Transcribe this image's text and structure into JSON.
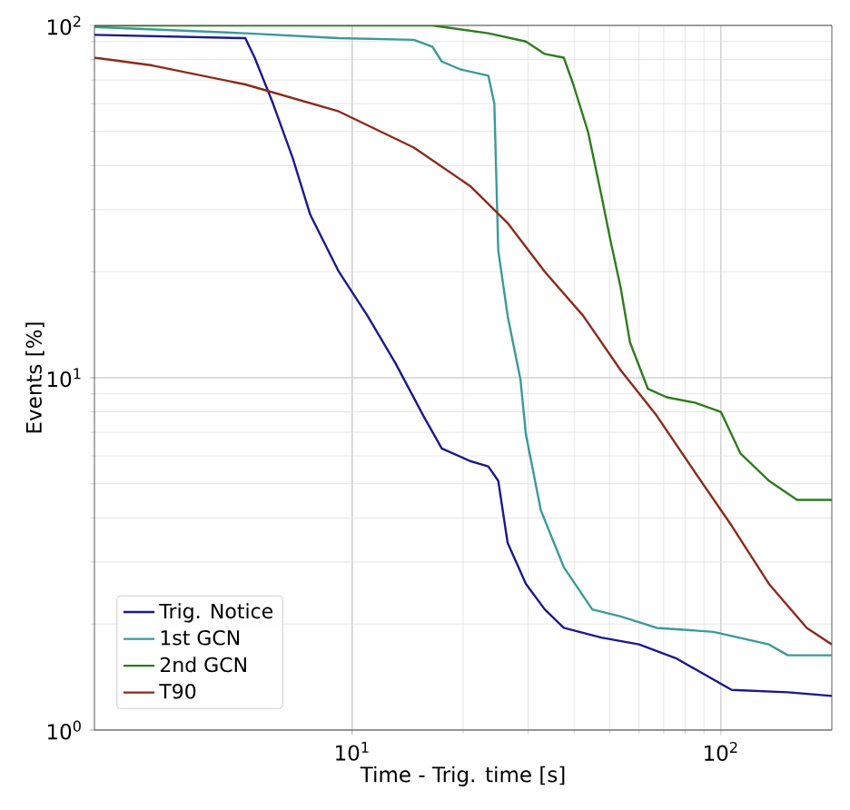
{
  "chart_data": {
    "type": "line",
    "xlabel": "Time - Trig. time [s]",
    "ylabel": "Events [%]",
    "log": "xy",
    "grid": true,
    "legend": "bottom left",
    "line_style": "solid",
    "marker": "none",
    "xlim": [
      2,
      200
    ],
    "ylim": [
      1,
      100
    ],
    "xticks": [
      {
        "value": 10,
        "label": "10$^{1}$"
      },
      {
        "value": 100,
        "label": "10$^{2}$"
      }
    ],
    "yticks": [
      {
        "value": 1,
        "label": "10$^{0}$"
      },
      {
        "value": 10,
        "label": "10$^{1}$"
      },
      {
        "value": 100,
        "label": "10$^{2}$"
      }
    ],
    "series": [
      {
        "name": "Trig. Notice",
        "color": "#1a1a8c",
        "x": [
          2,
          5.13,
          5.44,
          6.1,
          6.9,
          7.7,
          9.2,
          11,
          13.1,
          15.6,
          17.5,
          20.9,
          23.4,
          24.9,
          26.4,
          29.6,
          33.3,
          37.5,
          47.4,
          60,
          75.5,
          107,
          152,
          200
        ],
        "values": [
          94,
          92,
          81,
          60,
          42,
          29,
          20,
          15,
          11,
          7.8,
          6.3,
          5.8,
          5.6,
          5.1,
          3.4,
          2.6,
          2.2,
          1.95,
          1.83,
          1.75,
          1.6,
          1.3,
          1.28,
          1.25
        ]
      },
      {
        "name": "1st GCN",
        "color": "#3a9a9a",
        "x": [
          2,
          5.13,
          9.2,
          14.7,
          16.5,
          17.5,
          19.7,
          23.4,
          24.3,
          24.9,
          26.4,
          28.6,
          29.6,
          32.5,
          37.5,
          44.8,
          53.5,
          67,
          95.5,
          135,
          152,
          200
        ],
        "values": [
          99,
          95,
          92,
          91,
          87,
          79,
          75,
          72,
          60,
          23,
          15,
          9.9,
          6.9,
          4.2,
          2.9,
          2.2,
          2.1,
          1.95,
          1.9,
          1.75,
          1.63,
          1.63
        ]
      },
      {
        "name": "2nd GCN",
        "color": "#2e7d1e",
        "x": [
          2,
          16.5,
          23.4,
          29.6,
          33.3,
          37.5,
          39.8,
          43.6,
          47.4,
          50.2,
          53.5,
          56.7,
          63.4,
          71.3,
          85,
          100,
          113,
          135,
          161,
          200
        ],
        "values": [
          100,
          100,
          95,
          90,
          83,
          81,
          68,
          50,
          33,
          24.5,
          18,
          12.6,
          9.3,
          8.8,
          8.5,
          8.0,
          6.1,
          5.1,
          4.5,
          4.5
        ]
      },
      {
        "name": "T90",
        "color": "#8c2a1a",
        "x": [
          2,
          2.87,
          5.13,
          9.2,
          14.7,
          20.9,
          26.4,
          33.3,
          42.3,
          53.5,
          67,
          85,
          107,
          135,
          171,
          200
        ],
        "values": [
          81,
          77,
          68,
          57,
          45,
          35,
          27.5,
          20,
          15,
          10.5,
          7.8,
          5.4,
          3.8,
          2.6,
          1.95,
          1.75
        ]
      }
    ]
  }
}
